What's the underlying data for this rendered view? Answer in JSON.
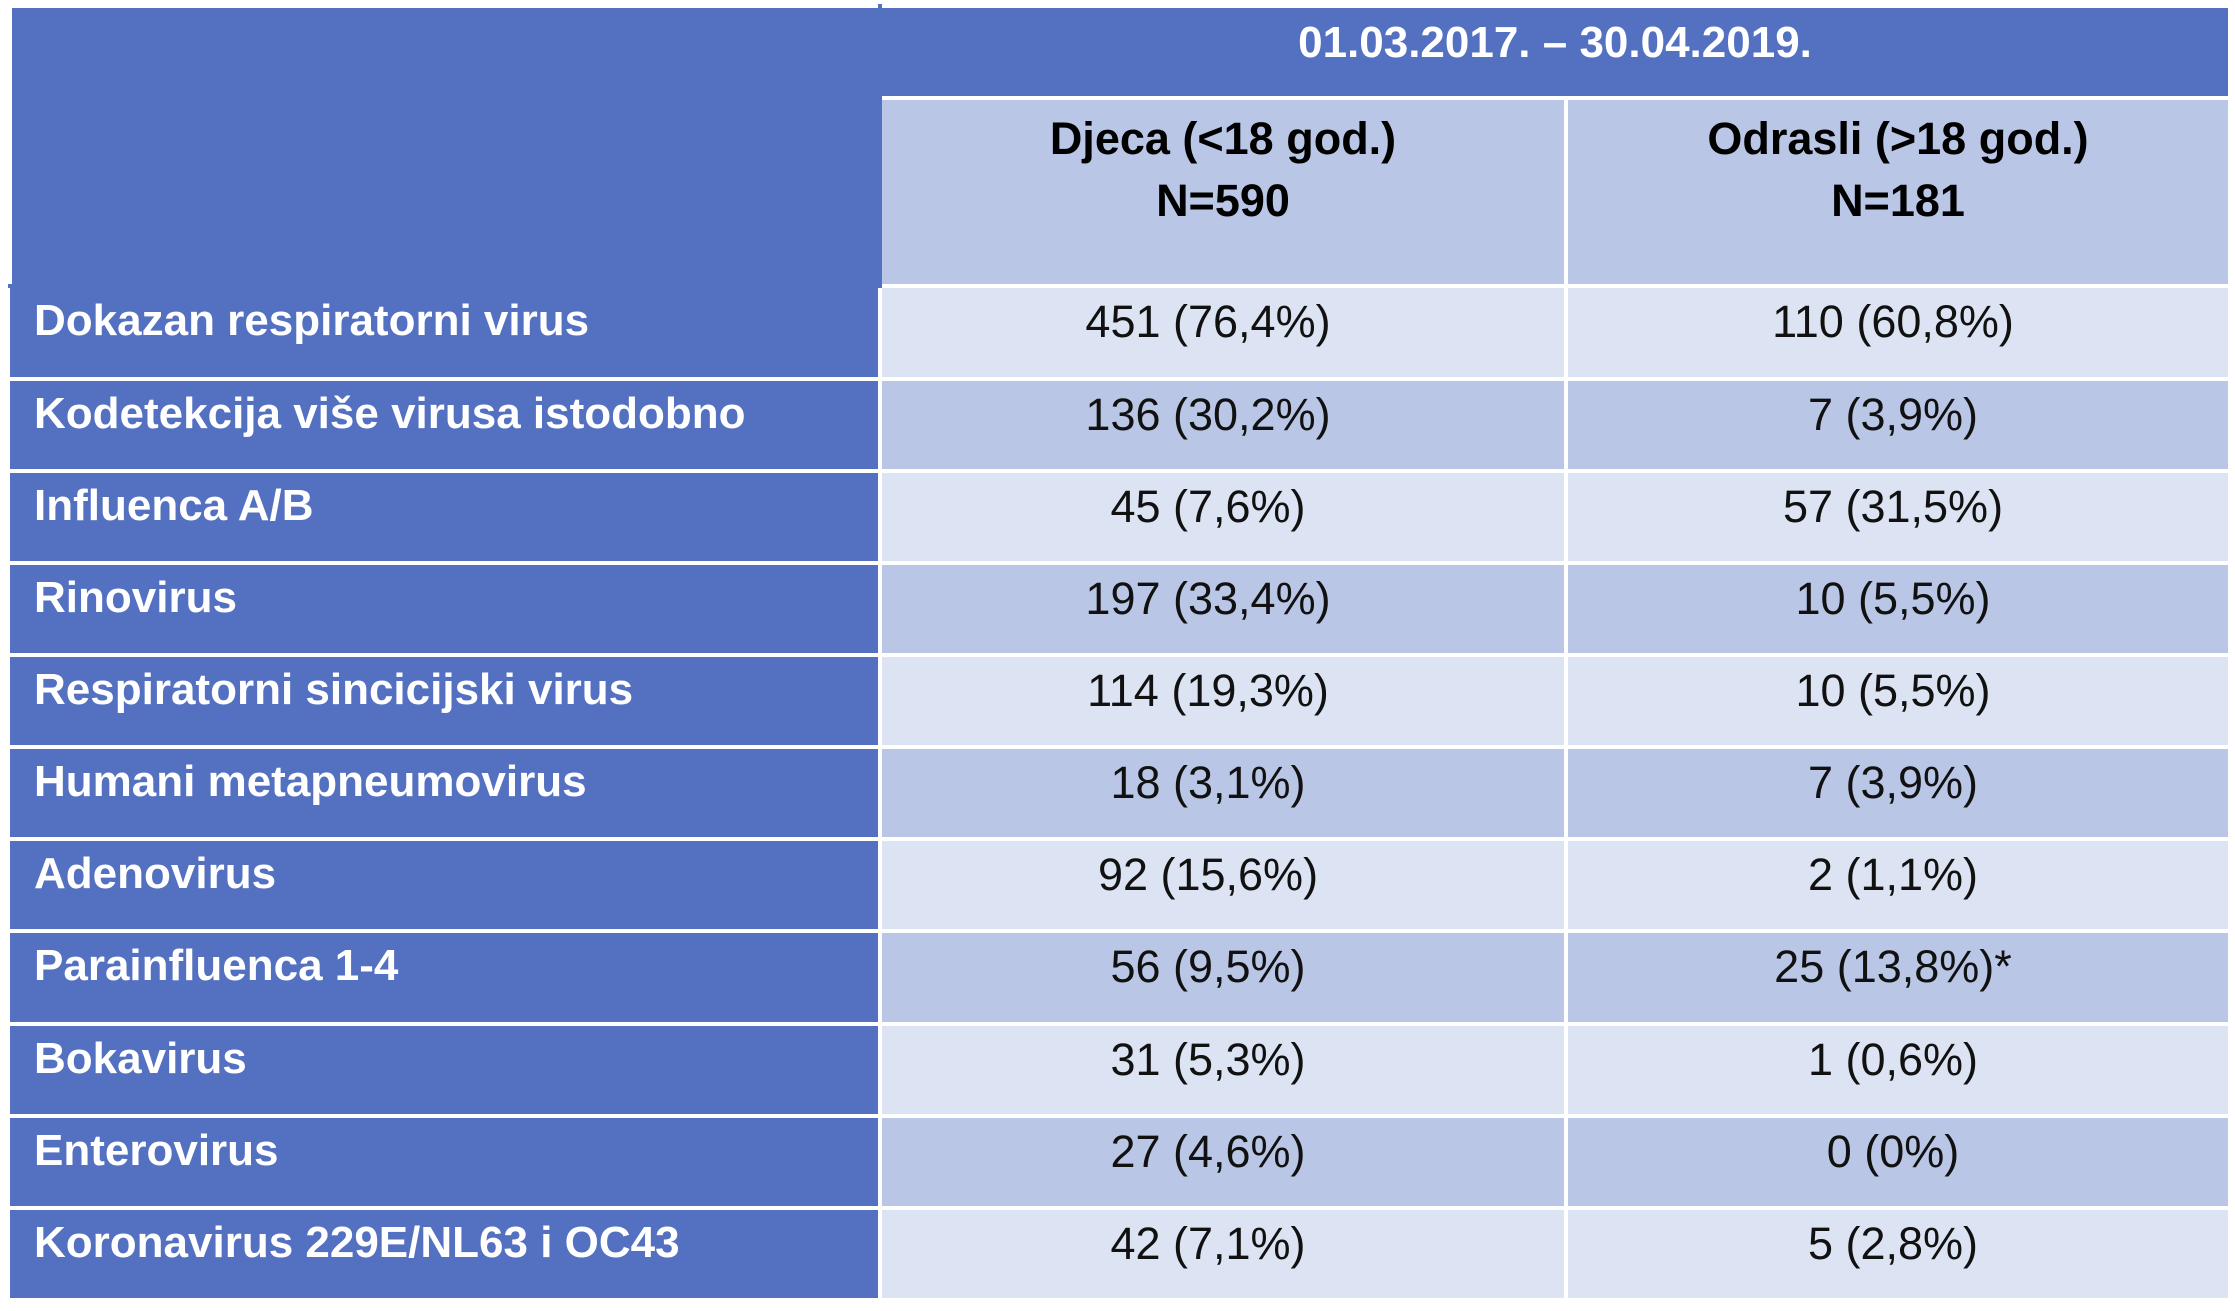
{
  "table": {
    "period": "01.03.2017. – 30.04.2019.",
    "groups": [
      {
        "label": "Djeca (<18 god.)",
        "n": "N=590"
      },
      {
        "label": "Odrasli (>18 god.)",
        "n": "N=181"
      }
    ],
    "rows": [
      {
        "label": "Dokazan respiratorni virus",
        "children": "451 (76,4%)",
        "adults": "110 (60,8%)"
      },
      {
        "label": "Kodetekcija više virusa istodobno",
        "children": "136 (30,2%)",
        "adults": "7 (3,9%)"
      },
      {
        "label": "Influenca A/B",
        "children": "45 (7,6%)",
        "adults": "57 (31,5%)"
      },
      {
        "label": "Rinovirus",
        "children": "197 (33,4%)",
        "adults": "10 (5,5%)"
      },
      {
        "label": "Respiratorni sincicijski virus",
        "children": "114 (19,3%)",
        "adults": "10 (5,5%)"
      },
      {
        "label": "Humani metapneumovirus",
        "children": "18 (3,1%)",
        "adults": "7 (3,9%)"
      },
      {
        "label": "Adenovirus",
        "children": "92 (15,6%)",
        "adults": "2 (1,1%)"
      },
      {
        "label": "Parainfluenca 1-4",
        "children": "56 (9,5%)",
        "adults": "25 (13,8%)*"
      },
      {
        "label": "Bokavirus",
        "children": "31 (5,3%)",
        "adults": "1 (0,6%)"
      },
      {
        "label": "Enterovirus",
        "children": "27 (4,6%)",
        "adults": "0 (0%)"
      },
      {
        "label": "Koronavirus 229E/NL63 i OC43",
        "children": "42 (7,1%)",
        "adults": "5 (2,8%)"
      }
    ]
  },
  "colors": {
    "header_blue": "#5470c1",
    "band_light": "#dce3f2",
    "band_mid": "#b9c6e6",
    "label_text": "#ffffff"
  }
}
